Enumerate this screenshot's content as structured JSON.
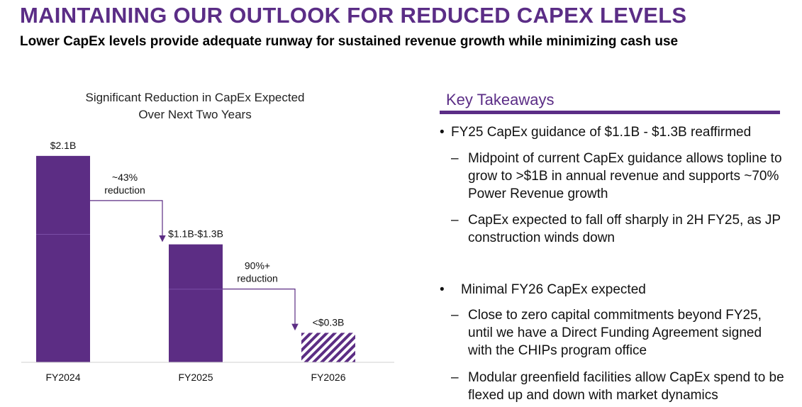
{
  "header": {
    "title": "MAINTAINING OUR OUTLOOK FOR REDUCED CAPEX LEVELS",
    "subtitle": "Lower CapEx levels provide adequate runway for sustained revenue growth while minimizing cash use"
  },
  "colors": {
    "brand_purple": "#5b2d86",
    "bar_purple": "#5c2d84",
    "divider": "#7a4ea6"
  },
  "chart_data": {
    "type": "bar",
    "title_lines": [
      "Significant Reduction in CapEx Expected",
      "Over Next Two Years"
    ],
    "categories": [
      "FY2024",
      "FY2025",
      "FY2026"
    ],
    "values": [
      2.1,
      1.2,
      0.3
    ],
    "unit": "$B",
    "value_labels": [
      "$2.1B",
      "$1.1B-$1.3B",
      "<$0.3B"
    ],
    "ylim": [
      0,
      2.2
    ],
    "series_style": [
      "solid",
      "solid",
      "hatched"
    ],
    "annotations": [
      {
        "from": "FY2024",
        "to": "FY2025",
        "lines": [
          "~43%",
          "reduction"
        ]
      },
      {
        "from": "FY2025",
        "to": "FY2026",
        "lines": [
          "90%+",
          "reduction"
        ]
      }
    ]
  },
  "takeaways": {
    "heading": "Key Takeaways",
    "bullets": [
      {
        "text": "FY25 CapEx guidance of $1.1B - $1.3B reaffirmed",
        "subs": [
          "Midpoint of current CapEx guidance allows topline to grow to >$1B in annual revenue and supports ~70% Power Revenue growth",
          "CapEx expected to fall off sharply in 2H FY25, as JP construction winds down"
        ]
      },
      {
        "text": "Minimal FY26 CapEx expected",
        "subs": [
          "Close to zero capital commitments beyond FY25, until we have a Direct Funding Agreement signed with the CHIPs program office",
          "Modular greenfield facilities allow CapEx spend to be flexed up and down with market dynamics"
        ]
      }
    ]
  }
}
